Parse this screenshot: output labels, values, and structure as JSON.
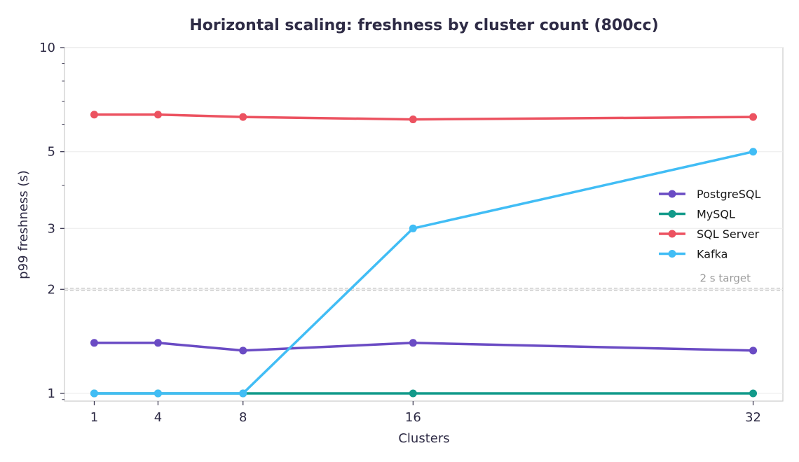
{
  "chart_data": {
    "type": "line",
    "title": "Horizontal scaling: freshness by cluster count (800cc)",
    "xlabel": "Clusters",
    "ylabel": "p99 freshness (s)",
    "x": [
      1,
      4,
      8,
      16,
      32
    ],
    "x_ticks": [
      "1",
      "4",
      "8",
      "16",
      "32"
    ],
    "y_scale": "log",
    "ylim": [
      0.95,
      10
    ],
    "y_ticks": [
      1,
      2,
      3,
      5,
      10
    ],
    "y_tick_labels": [
      "1",
      "2",
      "3",
      "5",
      "10"
    ],
    "grid": "y-major",
    "legend_position": "right",
    "series": [
      {
        "name": "PostgreSQL",
        "color": "#6a4bc4",
        "values": [
          1.4,
          1.4,
          1.33,
          1.4,
          1.33
        ]
      },
      {
        "name": "MySQL",
        "color": "#129a8a",
        "values": [
          1.0,
          1.0,
          1.0,
          1.0,
          1.0
        ]
      },
      {
        "name": "SQL Server",
        "color": "#ec5260",
        "values": [
          6.4,
          6.4,
          6.3,
          6.2,
          6.3
        ]
      },
      {
        "name": "Kafka",
        "color": "#41bdf5",
        "values": [
          1.0,
          1.0,
          1.0,
          3.0,
          5.0
        ]
      }
    ],
    "reference_line": {
      "y": 2,
      "label": "2 s target",
      "color": "#bdbdbd"
    }
  }
}
